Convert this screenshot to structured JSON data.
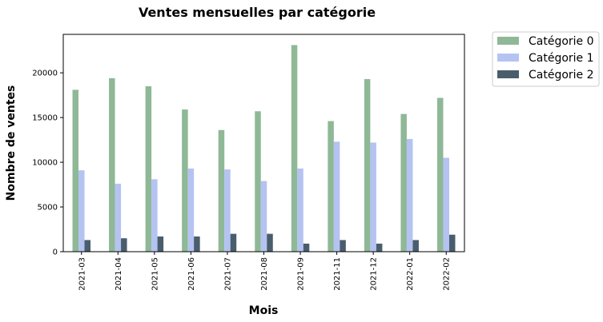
{
  "chart_data": {
    "type": "bar",
    "title": "Ventes mensuelles par catégorie",
    "xlabel": "Mois",
    "ylabel": "Nombre de ventes",
    "categories": [
      "2021-03",
      "2021-04",
      "2021-05",
      "2021-06",
      "2021-07",
      "2021-08",
      "2021-09",
      "2021-11",
      "2021-12",
      "2022-01",
      "2022-02"
    ],
    "series": [
      {
        "name": "Catégorie 0",
        "color": "#8fb896",
        "values": [
          18100,
          19400,
          18500,
          15900,
          13600,
          15700,
          23100,
          14600,
          19300,
          15400,
          17200
        ]
      },
      {
        "name": "Catégorie 1",
        "color": "#b5c3f2",
        "values": [
          9100,
          7600,
          8100,
          9300,
          9200,
          7900,
          9300,
          12300,
          12200,
          12600,
          10500
        ]
      },
      {
        "name": "Catégorie 2",
        "color": "#4a5d6c",
        "values": [
          1300,
          1500,
          1700,
          1700,
          2000,
          2000,
          900,
          1300,
          900,
          1300,
          1900
        ]
      }
    ],
    "ylim": [
      0,
      24300
    ],
    "yticks": [
      0,
      5000,
      10000,
      15000,
      20000
    ],
    "grid": false,
    "legend_position": "outside-top-right"
  }
}
